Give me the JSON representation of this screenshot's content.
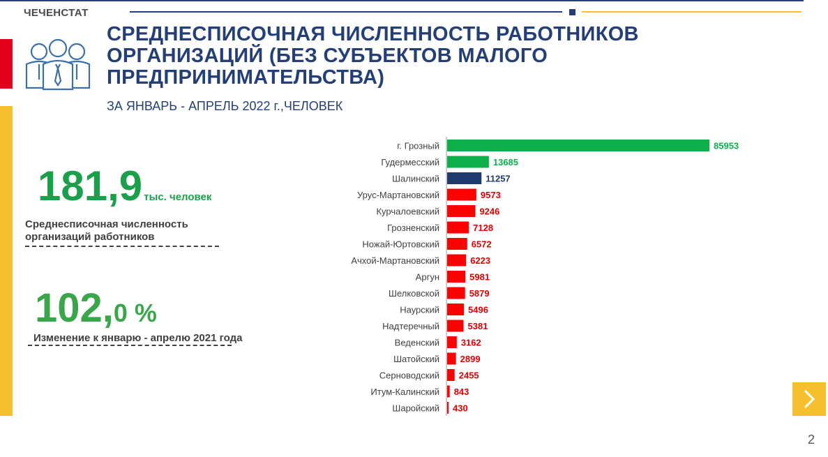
{
  "header": {
    "brand": "ЧЕЧЕНСТАТ",
    "title": "СРЕДНЕСПИСОЧНАЯ ЧИСЛЕННОСТЬ РАБОТНИКОВ ОРГАНИЗАЦИЙ (БЕЗ СУБЪЕКТОВ МАЛОГО ПРЕДПРИНИМАТЕЛЬСТВА)",
    "subtitle": "ЗА ЯНВАРЬ  - АПРЕЛЬ  2022 г.,ЧЕЛОВЕК"
  },
  "stats": {
    "total_value": "181,9",
    "total_unit": "тыс. человек",
    "total_label": "Среднесписочная  численность организаций   работников",
    "change_int": "102,",
    "change_dec": "0 %",
    "change_label": "Изменение  к январю  - апрелю  2021 года"
  },
  "colors": {
    "green": "#0db04b",
    "navy": "#1f3a6e",
    "red": "#ff0000",
    "title": "#243f78"
  },
  "icons": [
    "people-group-icon",
    "chevron-right-icon"
  ],
  "page": {
    "number": "2"
  },
  "chart_data": {
    "type": "bar",
    "orientation": "horizontal",
    "categories": [
      "г. Грозный",
      "Гудермесский",
      "Шалинский",
      "Урус-Мартановский",
      "Курчалоевский",
      "Грозненский",
      "Ножай-Юртовский",
      "Ачхой-Мартановский",
      "Аргун",
      "Шелковской",
      "Наурский",
      "Надтеречный",
      "Веденский",
      "Шатойский",
      "Серноводский",
      "Итум-Калинский",
      "Шаройский"
    ],
    "values": [
      85953,
      13685,
      11257,
      9573,
      9246,
      7128,
      6572,
      6223,
      5981,
      5879,
      5496,
      5381,
      3162,
      2899,
      2455,
      843,
      430
    ],
    "bar_colors": [
      "#0db04b",
      "#0db04b",
      "#1f3a6e",
      "#ff0000",
      "#ff0000",
      "#ff0000",
      "#ff0000",
      "#ff0000",
      "#ff0000",
      "#ff0000",
      "#ff0000",
      "#ff0000",
      "#ff0000",
      "#ff0000",
      "#ff0000",
      "#ff0000",
      "#ff0000"
    ],
    "label_colors": [
      "#0db04b",
      "#0db04b",
      "#1f3a6e",
      "#e00000",
      "#e00000",
      "#e00000",
      "#e00000",
      "#e00000",
      "#e00000",
      "#e00000",
      "#e00000",
      "#e00000",
      "#e00000",
      "#e00000",
      "#e00000",
      "#e00000",
      "#e00000"
    ],
    "title": "",
    "xlabel": "",
    "ylabel": "",
    "xlim": [
      0,
      85953
    ],
    "grid": false,
    "legend": "none",
    "data_labels": true
  }
}
